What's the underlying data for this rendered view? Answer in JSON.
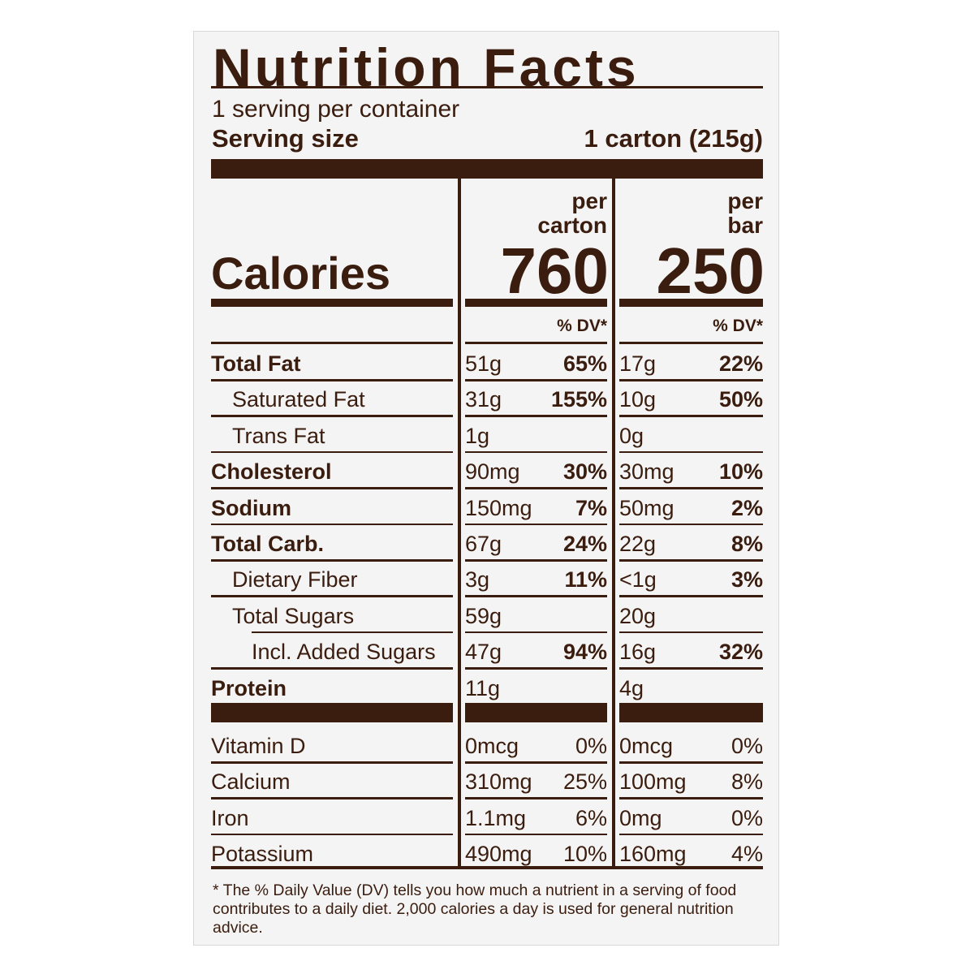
{
  "title": "Nutrition Facts",
  "servings": "1 serving per container",
  "serving_size": {
    "label": "Serving size",
    "value": "1 carton (215g)"
  },
  "calories": {
    "label": "Calories",
    "columns": [
      {
        "heading": [
          "per",
          "carton"
        ],
        "value": "760",
        "dv_label": "% DV*"
      },
      {
        "heading": [
          "per",
          "bar"
        ],
        "value": "250",
        "dv_label": "% DV*"
      }
    ]
  },
  "nutrients": [
    {
      "name": "Total Fat",
      "carton": [
        "51g",
        "65%"
      ],
      "bar": [
        "17g",
        "22%"
      ]
    },
    {
      "name": "Saturated Fat",
      "carton": [
        "31g",
        "155%"
      ],
      "bar": [
        "10g",
        "50%"
      ]
    },
    {
      "name": "Trans Fat",
      "carton": [
        "1g"
      ],
      "bar": [
        "0g"
      ]
    },
    {
      "name": "Cholesterol",
      "carton": [
        "90mg",
        "30%"
      ],
      "bar": [
        "30mg",
        "10%"
      ]
    },
    {
      "name": "Sodium",
      "carton": [
        "150mg",
        "7%"
      ],
      "bar": [
        "50mg",
        "2%"
      ]
    },
    {
      "name": "Total Carb.",
      "carton": [
        "67g",
        "24%"
      ],
      "bar": [
        "22g",
        "8%"
      ]
    },
    {
      "name": "Dietary Fiber",
      "carton": [
        "3g",
        "11%"
      ],
      "bar": [
        "<1g",
        "3%"
      ]
    },
    {
      "name": "Total Sugars",
      "carton": [
        "59g"
      ],
      "bar": [
        "20g"
      ]
    },
    {
      "name": "Incl. Added Sugars",
      "carton": [
        "47g",
        "94%"
      ],
      "bar": [
        "16g",
        "32%"
      ]
    },
    {
      "name": "Protein",
      "carton": [
        "11g"
      ],
      "bar": [
        "4g"
      ]
    }
  ],
  "vitamins": [
    {
      "name": "Vitamin D",
      "carton": [
        "0mcg",
        "0%"
      ],
      "bar": [
        "0mcg",
        "0%"
      ]
    },
    {
      "name": "Calcium",
      "carton": [
        "310mg",
        "25%"
      ],
      "bar": [
        "100mg",
        "8%"
      ]
    },
    {
      "name": "Iron",
      "carton": [
        "1.1mg",
        "6%"
      ],
      "bar": [
        "0mg",
        "0%"
      ]
    },
    {
      "name": "Potassium",
      "carton": [
        "490mg",
        "10%"
      ],
      "bar": [
        "160mg",
        "4%"
      ]
    }
  ],
  "footnote": "* The % Daily Value (DV) tells you how much a nutrient in a serving of food contributes to a daily diet. 2,000 calories a day is used for general nutrition advice."
}
